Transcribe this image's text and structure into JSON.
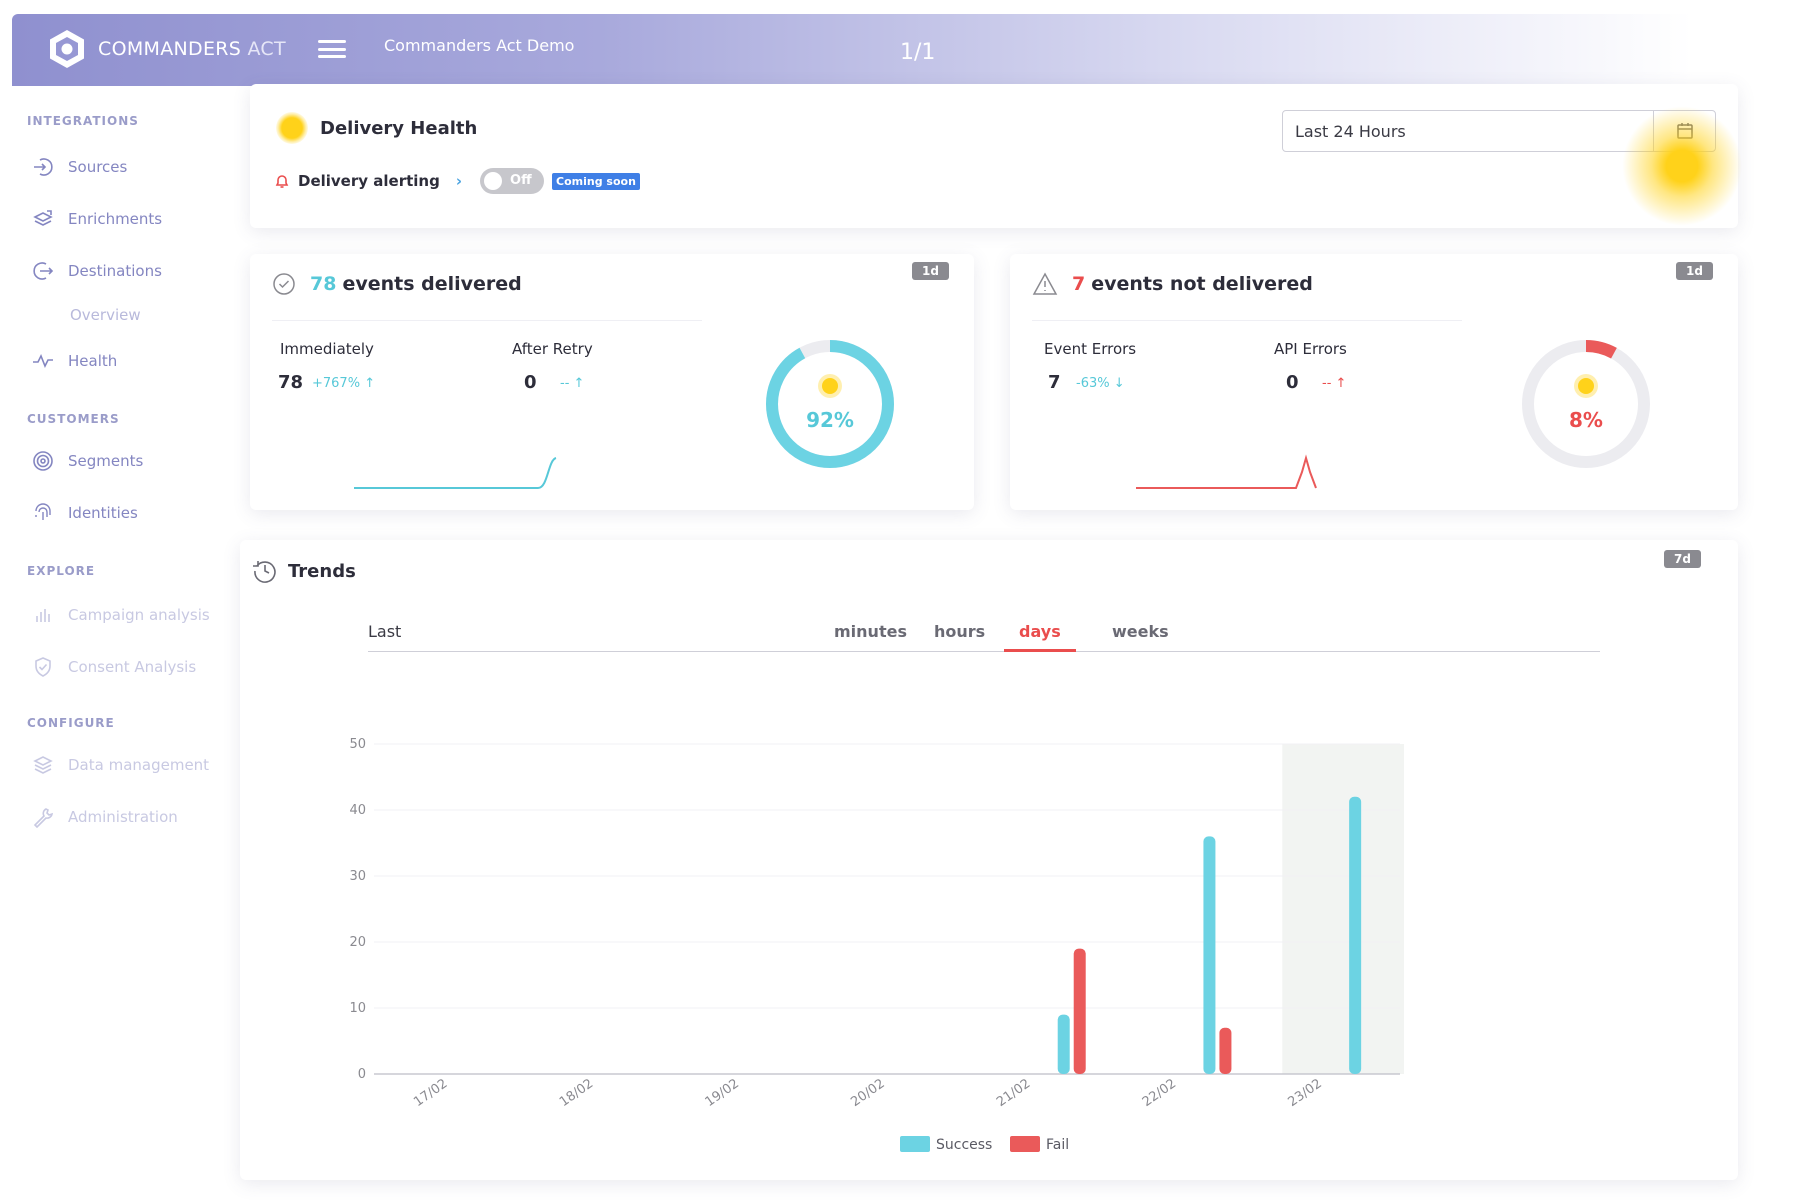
{
  "header": {
    "brand": "COMMANDERS",
    "brand_suffix": "ACT",
    "workspace": "Commanders Act Demo",
    "pager": "1/1"
  },
  "sidebar": {
    "sections": [
      {
        "title": "INTEGRATIONS",
        "items": [
          {
            "label": "Sources",
            "icon": "source-arrow-icon"
          },
          {
            "label": "Enrichments",
            "icon": "layers-icon"
          },
          {
            "label": "Destinations",
            "icon": "exit-arrow-icon"
          },
          {
            "label": "Overview",
            "icon": ""
          },
          {
            "label": "Health",
            "icon": "pulse-icon"
          }
        ]
      },
      {
        "title": "CUSTOMERS",
        "items": [
          {
            "label": "Segments",
            "icon": "target-icon"
          },
          {
            "label": "Identities",
            "icon": "fingerprint-icon"
          }
        ]
      },
      {
        "title": "EXPLORE",
        "items": [
          {
            "label": "Campaign analysis",
            "icon": "bar-chart-icon"
          },
          {
            "label": "Consent Analysis",
            "icon": "shield-check-icon"
          }
        ]
      },
      {
        "title": "CONFIGURE",
        "items": [
          {
            "label": "Data management",
            "icon": "stack-icon"
          },
          {
            "label": "Administration",
            "icon": "wrench-icon"
          }
        ]
      }
    ]
  },
  "health": {
    "title": "Delivery Health",
    "alerting_label": "Delivery alerting",
    "toggle_label": "Off",
    "coming_soon": "Coming soon",
    "range_value": "Last 24 Hours"
  },
  "delivered": {
    "count": "78",
    "label": "events delivered",
    "badge": "1d",
    "immediately_label": "Immediately",
    "immediately_value": "78",
    "immediately_delta": "+767%",
    "after_retry_label": "After Retry",
    "after_retry_value": "0",
    "after_retry_delta": "--",
    "percent": "92%",
    "percent_value": 92
  },
  "not_delivered": {
    "count": "7",
    "label": "events not delivered",
    "badge": "1d",
    "event_errors_label": "Event Errors",
    "event_errors_value": "7",
    "event_errors_delta": "-63%",
    "api_errors_label": "API Errors",
    "api_errors_value": "0",
    "api_errors_delta": "--",
    "percent": "8%",
    "percent_value": 8
  },
  "trends": {
    "title": "Trends",
    "badge": "7d",
    "tab_last": "Last",
    "tabs": [
      {
        "label": "minutes",
        "active": false
      },
      {
        "label": "hours",
        "active": false
      },
      {
        "label": "days",
        "active": true
      },
      {
        "label": "weeks",
        "active": false
      }
    ]
  },
  "chart_data": {
    "type": "bar",
    "categories": [
      "17/02",
      "18/02",
      "19/02",
      "20/02",
      "21/02",
      "22/02",
      "23/02"
    ],
    "series": [
      {
        "name": "Success",
        "color": "#6cd3e3",
        "values": [
          0,
          0,
          0,
          0,
          9,
          36,
          42
        ]
      },
      {
        "name": "Fail",
        "color": "#ea5a5a",
        "values": [
          0,
          0,
          0,
          0,
          19,
          7,
          0
        ]
      }
    ],
    "yticks": [
      0,
      10,
      20,
      30,
      40,
      50
    ],
    "ylim": [
      0,
      50
    ],
    "grid": true,
    "highlighted_category": "23/02",
    "legend_position": "bottom-center"
  },
  "colors": {
    "accent_teal": "#57c8d8",
    "accent_red": "#ea4d4d",
    "header_start": "#8f90cf",
    "sidebar_text": "#8486c1"
  }
}
